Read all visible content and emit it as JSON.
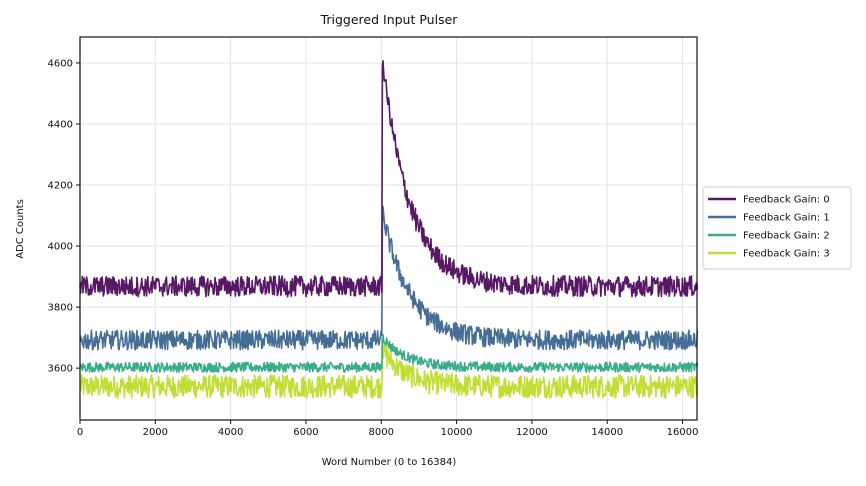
{
  "chart_data": {
    "type": "line",
    "title": "Triggered Input Pulser",
    "xlabel": "Word Number (0 to 16384)",
    "ylabel": "ADC Counts",
    "xlim": [
      0,
      16384
    ],
    "ylim": [
      3430,
      4685
    ],
    "xticks": [
      0,
      2000,
      4000,
      6000,
      8000,
      10000,
      12000,
      14000,
      16000
    ],
    "yticks": [
      3600,
      3800,
      4000,
      4200,
      4400,
      4600
    ],
    "grid": true,
    "legend_position": "outside-right",
    "pulse_start_word": 8010,
    "series": [
      {
        "name": "Feedback Gain: 0",
        "color": "#581866",
        "baseline": 3868,
        "band_half_width": 34,
        "peak": 4625,
        "decay_words": 720
      },
      {
        "name": "Feedback Gain: 1",
        "color": "#456e97",
        "baseline": 3692,
        "band_half_width": 32,
        "peak": 4115,
        "decay_words": 720
      },
      {
        "name": "Feedback Gain: 2",
        "color": "#39ad8a",
        "baseline": 3603,
        "band_half_width": 16,
        "peak": 3705,
        "decay_words": 600
      },
      {
        "name": "Feedback Gain: 3",
        "color": "#c2de34",
        "baseline": 3540,
        "band_half_width": 38,
        "peak": 3665,
        "decay_words": 600
      }
    ],
    "legend_entries": [
      "Feedback Gain: 0",
      "Feedback Gain: 1",
      "Feedback Gain: 2",
      "Feedback Gain: 3"
    ]
  }
}
